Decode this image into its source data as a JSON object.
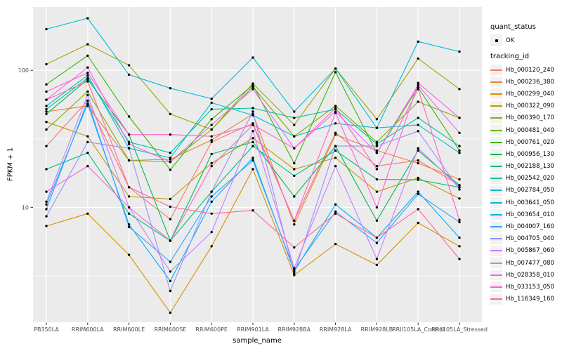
{
  "legend": {
    "quant_status": {
      "title": "quant_status",
      "items": [
        {
          "label": "OK",
          "symbol": "point"
        }
      ]
    },
    "tracking_id": {
      "title": "tracking_id"
    }
  },
  "colors": {
    "panel_bg": "#EBEBEB",
    "grid": "#FFFFFF",
    "tick": "#333333",
    "tick_label": "#4D4D4D",
    "point": "#000000",
    "legend_key_bg": "#F2F2F2"
  },
  "chart_data": {
    "type": "line",
    "title": "",
    "xlabel": "sample_name",
    "ylabel": "FPKM + 1",
    "y_scale": "log10",
    "ylim": [
      1.45,
      290
    ],
    "grid": true,
    "legend_position": "right",
    "quant_status": "OK",
    "y_ticks": [
      {
        "value": 100,
        "label": "100"
      },
      {
        "value": 10,
        "label": "10"
      }
    ],
    "y_minor_gridlines": [
      3.16,
      31.6
    ],
    "x_categories": [
      "PB350LA",
      "RRIM600LA",
      "RRIM600LE",
      "RRIM600SE",
      "RRIM600PE",
      "RRIM901LA",
      "RRIM928BA",
      "RRIM928LA",
      "RRIM928LB",
      "RRII105LA_Control",
      "RRII105LA_Stressed"
    ],
    "series": [
      {
        "name": "Hb_000120_240",
        "color": "#F8766D",
        "values": [
          28,
          60,
          14,
          8.2,
          30,
          41,
          8.0,
          35,
          20,
          22,
          14.5
        ]
      },
      {
        "name": "Hb_000236_380",
        "color": "#EA8331",
        "values": [
          50,
          55,
          22,
          22.4,
          31,
          48,
          7.5,
          34,
          26,
          21,
          16
        ]
      },
      {
        "name": "Hb_000299_040",
        "color": "#D89000",
        "values": [
          7.3,
          9.0,
          4.5,
          1.7,
          5.2,
          19,
          3.2,
          5.4,
          3.8,
          7.7,
          5.2
        ]
      },
      {
        "name": "Hb_000322_090",
        "color": "#C09B00",
        "values": [
          42,
          33,
          12,
          11.5,
          21,
          32,
          19,
          23,
          13,
          16.4,
          11.6
        ]
      },
      {
        "name": "Hb_000390_170",
        "color": "#A3A500",
        "values": [
          111,
          155,
          109,
          48,
          37,
          80,
          40,
          103,
          44,
          122,
          73
        ]
      },
      {
        "name": "Hb_000481_040",
        "color": "#7CAE00",
        "values": [
          37,
          70,
          22,
          21.5,
          37,
          76,
          33,
          55,
          30,
          59,
          45
        ]
      },
      {
        "name": "Hb_000761_020",
        "color": "#39B600",
        "values": [
          79,
          128,
          46,
          18.8,
          44,
          78,
          21,
          97,
          25,
          75,
          26
        ]
      },
      {
        "name": "Hb_000956_130",
        "color": "#00BB4E",
        "values": [
          48,
          86,
          34,
          5.7,
          24.5,
          30,
          12,
          28,
          8,
          26,
          14.5
        ]
      },
      {
        "name": "Hb_002188_130",
        "color": "#00BF7D",
        "values": [
          19,
          25,
          9,
          5.7,
          13,
          28,
          17,
          26,
          16,
          15.9,
          14
        ]
      },
      {
        "name": "Hb_002542_020",
        "color": "#00C1A3",
        "values": [
          52,
          88,
          30,
          25,
          52,
          53,
          45,
          52,
          29,
          45,
          28
        ]
      },
      {
        "name": "Hb_002784_050",
        "color": "#00BFC4",
        "values": [
          55,
          92,
          27,
          23,
          58,
          47,
          33,
          41,
          38,
          40,
          25
        ]
      },
      {
        "name": "Hb_003641_050",
        "color": "#00BAE0",
        "values": [
          200,
          240,
          93,
          74,
          62,
          124,
          50,
          103,
          38,
          162,
          137
        ]
      },
      {
        "name": "Hb_003654_010",
        "color": "#00B0F6",
        "values": [
          10.5,
          57,
          7.5,
          2.9,
          11,
          23,
          3.4,
          10.5,
          6,
          13,
          6.0
        ]
      },
      {
        "name": "Hb_004007_160",
        "color": "#35A2FF",
        "values": [
          9.7,
          60,
          7.2,
          4.0,
          12,
          22,
          3.5,
          9.3,
          5.5,
          12.5,
          7.8
        ]
      },
      {
        "name": "Hb_004705_040",
        "color": "#9590FF",
        "values": [
          8.6,
          30,
          27,
          2.45,
          13,
          50,
          3.3,
          28,
          28,
          36,
          13.5
        ]
      },
      {
        "name": "Hb_005867_060",
        "color": "#C77CFF",
        "values": [
          11,
          66,
          10,
          3.4,
          6.6,
          36,
          3.6,
          20,
          4.2,
          27,
          14
        ]
      },
      {
        "name": "Hb_007477_080",
        "color": "#E76BF3",
        "values": [
          61,
          105,
          29,
          21.5,
          40,
          73,
          27,
          50,
          25,
          78,
          35
        ]
      },
      {
        "name": "Hb_028358_010",
        "color": "#FA62DB",
        "values": [
          13,
          20,
          10,
          5.7,
          20,
          40,
          8,
          49,
          10,
          81,
          45
        ]
      },
      {
        "name": "Hb_033153_050",
        "color": "#FF61C9",
        "values": [
          70,
          96,
          34,
          34,
          33,
          40,
          27,
          53,
          19,
          73,
          8.1
        ]
      },
      {
        "name": "Hb_116349_160",
        "color": "#FF6A98",
        "values": [
          61,
          83,
          14,
          10.1,
          9,
          9.5,
          5.1,
          9.0,
          6,
          9.7,
          4.2
        ]
      }
    ]
  }
}
